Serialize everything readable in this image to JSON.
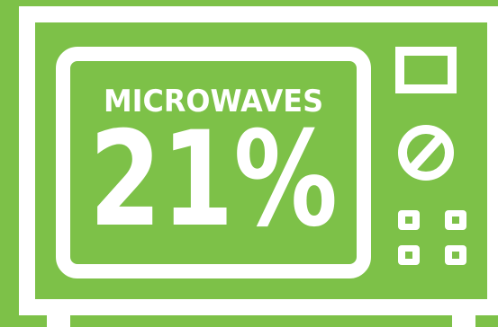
{
  "graphic": {
    "icon": "microwave-icon",
    "label": "MICROWAVES",
    "value": "21%"
  },
  "colors": {
    "background": "#7dc148",
    "foreground": "#ffffff"
  }
}
